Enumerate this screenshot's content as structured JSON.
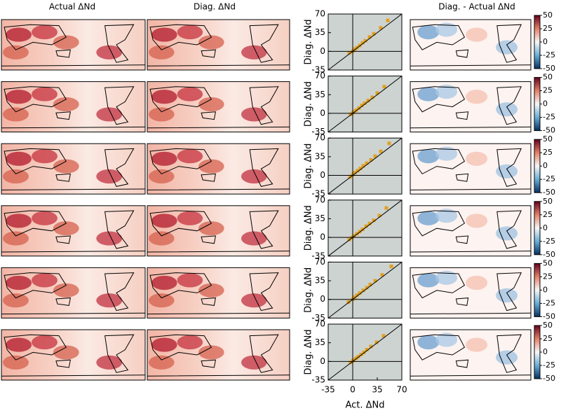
{
  "column_titles": [
    "Actual ΔNd",
    "Diag. ΔNd",
    "Diag. - Actual ΔNd"
  ],
  "chart_data": [
    {
      "type": "scatter",
      "ylabel": "Diag. ΔNd",
      "xlim": [
        -35,
        70
      ],
      "ylim": [
        -35,
        70
      ],
      "yticks": [
        -35,
        0,
        35,
        70
      ],
      "x": [
        -5,
        0,
        3,
        6,
        10,
        14,
        18,
        24,
        30,
        40,
        50
      ],
      "y": [
        -3,
        0,
        4,
        7,
        11,
        16,
        20,
        27,
        33,
        44,
        58
      ],
      "color": "#e0a020",
      "colorbar": {
        "lim": [
          -50,
          50
        ],
        "ticks": [
          50,
          25,
          0,
          -25,
          -50
        ]
      }
    },
    {
      "type": "scatter",
      "ylabel": "Diag. ΔNd",
      "xlim": [
        -35,
        70
      ],
      "ylim": [
        -35,
        70
      ],
      "yticks": [
        -35,
        0,
        35,
        70
      ],
      "x": [
        -3,
        0,
        2,
        5,
        9,
        13,
        17,
        22,
        28,
        35,
        45
      ],
      "y": [
        -2,
        1,
        3,
        6,
        10,
        15,
        19,
        24,
        30,
        38,
        50
      ],
      "color": "#e0a020",
      "colorbar": {
        "lim": [
          -50,
          50
        ],
        "ticks": [
          50,
          25,
          0,
          -25,
          -50
        ]
      }
    },
    {
      "type": "scatter",
      "ylabel": "Diag. ΔNd",
      "xlim": [
        -35,
        70
      ],
      "ylim": [
        -35,
        70
      ],
      "yticks": [
        -35,
        0,
        35,
        70
      ],
      "x": [
        -4,
        0,
        3,
        7,
        11,
        15,
        20,
        26,
        32,
        40,
        52
      ],
      "y": [
        -3,
        1,
        5,
        9,
        13,
        18,
        23,
        29,
        36,
        45,
        60
      ],
      "color": "#e0a020",
      "colorbar": {
        "lim": [
          -50,
          50
        ],
        "ticks": [
          50,
          25,
          0,
          -25,
          -50
        ]
      }
    },
    {
      "type": "scatter",
      "ylabel": "Diag. ΔNd",
      "xlim": [
        -35,
        70
      ],
      "ylim": [
        -35,
        70
      ],
      "yticks": [
        -35,
        0,
        35,
        70
      ],
      "x": [
        -5,
        -1,
        2,
        6,
        10,
        14,
        19,
        24,
        30,
        38,
        48
      ],
      "y": [
        -4,
        0,
        3,
        7,
        11,
        15,
        21,
        26,
        32,
        41,
        55
      ],
      "color": "#e0a020",
      "colorbar": {
        "lim": [
          -50,
          50
        ],
        "ticks": [
          50,
          25,
          0,
          -25,
          -50
        ]
      }
    },
    {
      "type": "scatter",
      "ylabel": "Diag. ΔNd",
      "xlim": [
        -35,
        70
      ],
      "ylim": [
        -35,
        70
      ],
      "yticks": [
        -35,
        0,
        35,
        70
      ],
      "x": [
        -6,
        0,
        3,
        6,
        10,
        15,
        20,
        25,
        32,
        42,
        55
      ],
      "y": [
        -5,
        0,
        4,
        8,
        12,
        17,
        22,
        28,
        35,
        46,
        62
      ],
      "color": "#e0a020",
      "colorbar": {
        "lim": [
          -50,
          50
        ],
        "ticks": [
          50,
          25,
          0,
          -25,
          -50
        ]
      }
    },
    {
      "type": "scatter",
      "ylabel": "Diag. ΔNd",
      "xlabel": "Act. ΔNd",
      "xlim": [
        -35,
        70
      ],
      "ylim": [
        -35,
        70
      ],
      "xticks": [
        -35,
        0,
        35,
        70
      ],
      "yticks": [
        -35,
        0,
        35,
        70
      ],
      "x": [
        -3,
        0,
        2,
        5,
        8,
        12,
        16,
        20,
        26,
        34,
        44
      ],
      "y": [
        -2,
        1,
        3,
        6,
        9,
        13,
        17,
        22,
        28,
        36,
        48
      ],
      "color": "#e0a020",
      "colorbar": {
        "lim": [
          -50,
          50
        ],
        "ticks": [
          50,
          25,
          0,
          -25,
          -50
        ]
      }
    }
  ]
}
